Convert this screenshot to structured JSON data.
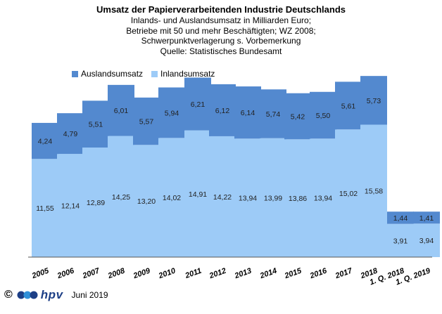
{
  "chart_data": {
    "type": "bar",
    "stacked": true,
    "title": "Umsatz der Papierverarbeitenden Industrie Deutschlands",
    "subtitle_lines": [
      "Inlands- und Auslandsumsatz in Milliarden Euro;",
      "Betriebe mit 50 und mehr Beschäftigten;  WZ 2008;",
      "Schwerpunktverlagerung  s. Vorbemerkung",
      "Quelle: Statistisches Bundesamt"
    ],
    "categories": [
      "2005",
      "2006",
      "2007",
      "2008",
      "2009",
      "2010",
      "2011",
      "2012",
      "2013",
      "2014",
      "2015",
      "2016",
      "2017",
      "2018",
      "1. Q. 2018",
      "1. Q. 2019"
    ],
    "series": [
      {
        "name": "Inlandsumsatz",
        "color": "#9dcbf7",
        "values": [
          11.55,
          12.14,
          12.89,
          14.25,
          13.2,
          14.02,
          14.91,
          14.22,
          13.94,
          13.99,
          13.86,
          13.94,
          15.02,
          15.58,
          3.91,
          3.94
        ],
        "labels": [
          "11,55",
          "12,14",
          "12,89",
          "14,25",
          "13,20",
          "14,02",
          "14,91",
          "14,22",
          "13,94",
          "13,99",
          "13,86",
          "13,94",
          "15,02",
          "15,58",
          "3,91",
          "3,94"
        ]
      },
      {
        "name": "Auslandsumsatz",
        "color": "#5389cf",
        "values": [
          4.24,
          4.79,
          5.51,
          6.01,
          5.57,
          5.94,
          6.21,
          6.12,
          6.14,
          5.74,
          5.42,
          5.5,
          5.61,
          5.73,
          1.44,
          1.41
        ],
        "labels": [
          "4,24",
          "4,79",
          "5,51",
          "6,01",
          "5,57",
          "5,94",
          "6,21",
          "6,12",
          "6,14",
          "5,74",
          "5,42",
          "5,50",
          "5,61",
          "5,73",
          "1,44",
          "1,41"
        ]
      }
    ],
    "legend_position": "top-left",
    "grid": false
  },
  "footer": {
    "copyright_symbol": "©",
    "logo_text": "hpv",
    "date": "Juni 2019"
  }
}
